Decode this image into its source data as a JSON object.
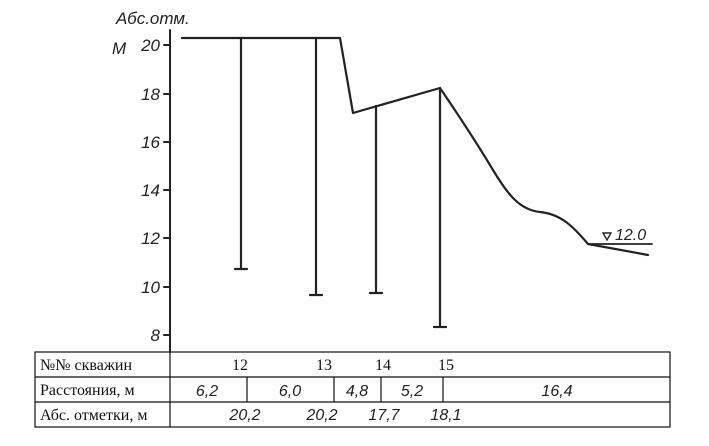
{
  "axis": {
    "title": "Абс.отм.",
    "unit": "М",
    "ticks": [
      "20",
      "18",
      "16",
      "14",
      "12",
      "10",
      "8"
    ]
  },
  "water_level": {
    "label": "12.0"
  },
  "wells": [
    {
      "number": "12",
      "top": 20.2,
      "bottom": 10.8
    },
    {
      "number": "13",
      "top": 20.2,
      "bottom": 9.7
    },
    {
      "number": "14",
      "top": 17.7,
      "bottom": 9.8
    },
    {
      "number": "15",
      "top": 18.1,
      "bottom": 8.4
    }
  ],
  "table": {
    "row_wells_label": "№№ скважин",
    "row_distances_label": "Расстояния, м",
    "row_elevations_label": "Абс. отметки, м",
    "well_numbers": [
      "12",
      "13",
      "14",
      "15"
    ],
    "distances": [
      "6,2",
      "6,0",
      "4,8",
      "5,2",
      "16,4"
    ],
    "elevations": [
      "20,2",
      "20,2",
      "17,7",
      "18,1"
    ]
  }
}
